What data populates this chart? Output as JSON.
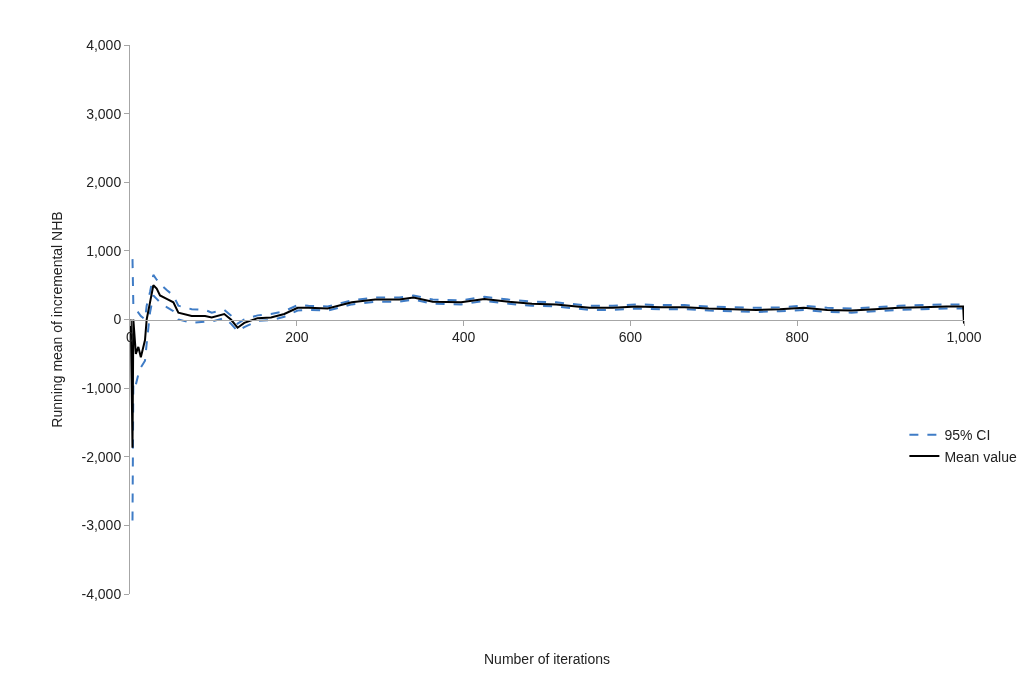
{
  "chart_data": {
    "type": "line",
    "xlabel": "Number of iterations",
    "ylabel": "Running mean of incremental NHB",
    "x": [
      1,
      3,
      4,
      7,
      10,
      13,
      18,
      20,
      24,
      28,
      32,
      36,
      44,
      52,
      58,
      74,
      90,
      98,
      113,
      121,
      129,
      137,
      153,
      169,
      185,
      201,
      214,
      237,
      266,
      294,
      323,
      340,
      363,
      397,
      425,
      454,
      482,
      511,
      551,
      579,
      608,
      637,
      665,
      694,
      722,
      751,
      779,
      808,
      836,
      865,
      893,
      922,
      950,
      979,
      999,
      1000
    ],
    "series": [
      {
        "name": "95% CI",
        "color": "#3f7cc6",
        "line_style": "dashed",
        "values": [
          null,
          880,
          200,
          150,
          100,
          50,
          0,
          200,
          400,
          650,
          580,
          520,
          430,
          350,
          200,
          150,
          140,
          100,
          140,
          60,
          -60,
          0,
          60,
          80,
          120,
          210,
          200,
          190,
          280,
          320,
          320,
          350,
          290,
          280,
          330,
          290,
          260,
          250,
          200,
          200,
          220,
          210,
          210,
          190,
          180,
          170,
          180,
          200,
          170,
          160,
          180,
          200,
          210,
          220,
          220,
          null
        ]
      },
      {
        "color": "#3f7cc6",
        "line_style": "dashed",
        "values": [
          null,
          -2930,
          -900,
          -950,
          -800,
          -700,
          -600,
          -350,
          100,
          350,
          300,
          250,
          180,
          120,
          0,
          -50,
          -30,
          -30,
          20,
          -60,
          -170,
          -110,
          -20,
          -10,
          40,
          130,
          140,
          130,
          220,
          260,
          260,
          290,
          230,
          220,
          270,
          230,
          200,
          190,
          140,
          140,
          160,
          150,
          150,
          130,
          120,
          110,
          120,
          140,
          110,
          100,
          120,
          140,
          150,
          160,
          160,
          null
        ]
      },
      {
        "name": "Mean value",
        "color": "#000000",
        "line_style": "solid",
        "values": [
          0,
          -1870,
          0,
          -500,
          -400,
          -550,
          -300,
          0,
          250,
          500,
          450,
          350,
          300,
          250,
          100,
          50,
          50,
          30,
          80,
          0,
          -120,
          -50,
          20,
          30,
          80,
          170,
          170,
          160,
          250,
          290,
          290,
          320,
          260,
          250,
          300,
          260,
          230,
          220,
          170,
          170,
          190,
          180,
          180,
          160,
          150,
          140,
          150,
          170,
          140,
          130,
          150,
          170,
          180,
          190,
          190,
          -60
        ]
      }
    ],
    "xlim": [
      0,
      1000
    ],
    "xticks": [
      0,
      200,
      400,
      600,
      800,
      {
        "value": 1000,
        "label": "1,000"
      }
    ],
    "ylim": [
      -4000,
      4000
    ],
    "yticks": [
      {
        "value": -4000,
        "label": "-4,000"
      },
      {
        "value": -3000,
        "label": "-3,000"
      },
      {
        "value": -2000,
        "label": "-2,000"
      },
      {
        "value": -1000,
        "label": "-1,000"
      },
      0,
      {
        "value": 1000,
        "label": "1,000"
      },
      {
        "value": 2000,
        "label": "2,000"
      },
      {
        "value": 3000,
        "label": "3,000"
      },
      {
        "value": 4000,
        "label": "4,000"
      }
    ],
    "grid": false,
    "legend": "right",
    "marker": "none"
  }
}
